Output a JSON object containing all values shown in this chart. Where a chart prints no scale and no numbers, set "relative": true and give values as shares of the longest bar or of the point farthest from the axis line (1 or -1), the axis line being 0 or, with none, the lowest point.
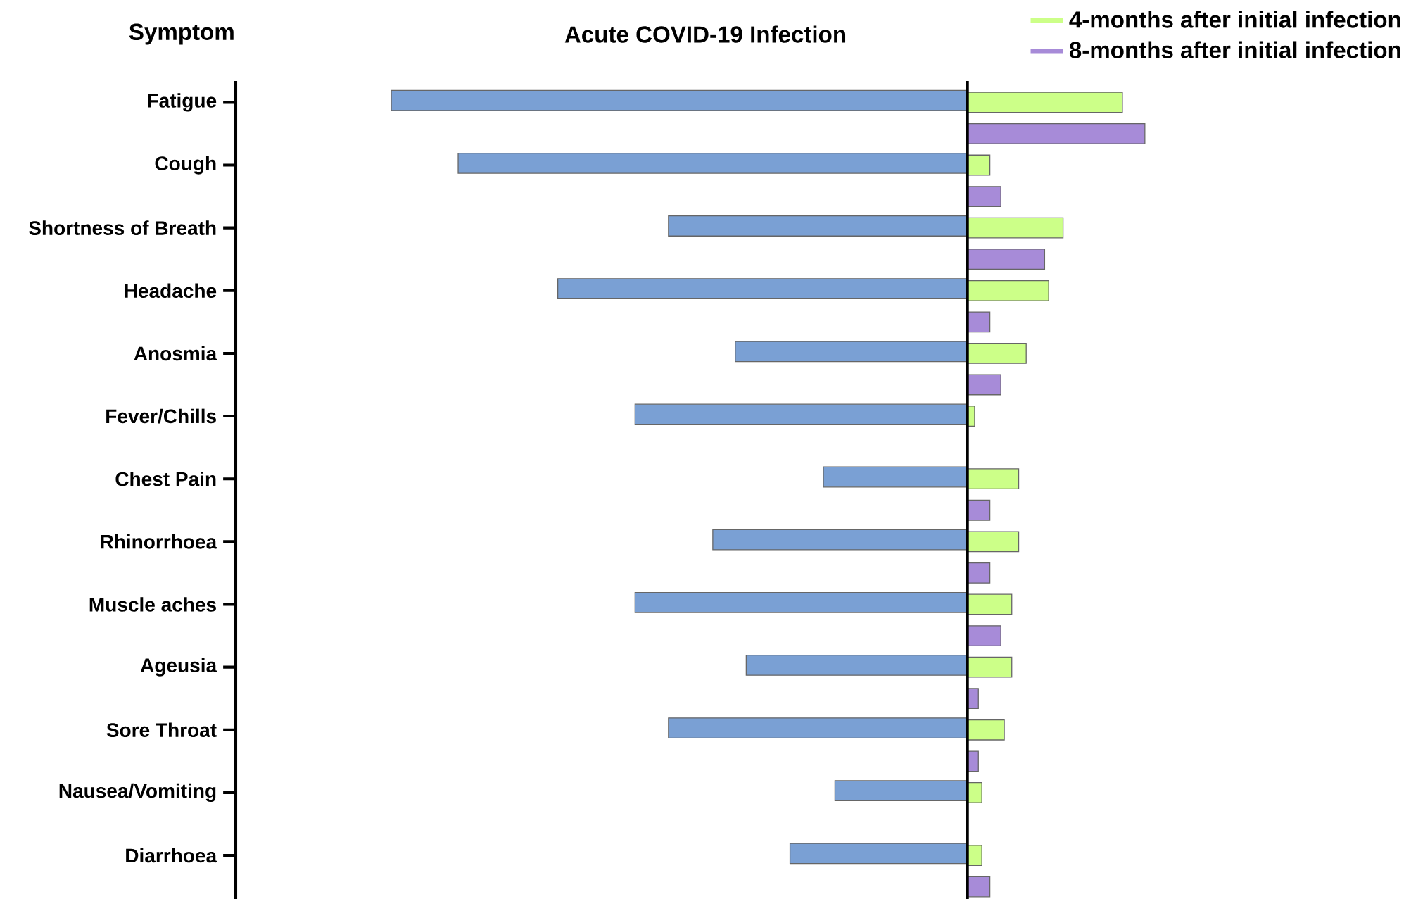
{
  "chart_data": {
    "type": "bar",
    "orientation": "horizontal",
    "relative": true,
    "ylabel": "Symptom",
    "annotations": [
      "Acute COVID-19 Infection"
    ],
    "categories": [
      "Fatigue",
      "Cough",
      "Shortness of Breath",
      "Headache",
      "Anosmia",
      "Fever/Chills",
      "Chest Pain",
      "Rhinorrhoea",
      "Muscle aches",
      "Ageusia",
      "Sore Throat",
      "Nausea/Vomiting",
      "Diarrhoea"
    ],
    "series": [
      {
        "color": "#7aa0d4",
        "values": [
          -1,
          -0.884,
          -0.519,
          -0.711,
          -0.403,
          -0.577,
          -0.25,
          -0.442,
          -0.577,
          -0.384,
          -0.519,
          -0.23,
          -0.308
        ]
      },
      {
        "name": "4-months after initial infection",
        "color": "#ccff88",
        "values": [
          0.269,
          0.039,
          0.166,
          0.141,
          0.102,
          0.0125,
          0.089,
          0.089,
          0.077,
          0.077,
          0.064,
          0.025,
          0.025
        ]
      },
      {
        "name": "8-months after initial infection",
        "color": "#a78bd8",
        "values": [
          0.308,
          0.058,
          0.134,
          0.039,
          0.058,
          null,
          0.039,
          0.039,
          0.058,
          0.019,
          0.019,
          null,
          0.039
        ]
      }
    ],
    "legend": "top right"
  }
}
